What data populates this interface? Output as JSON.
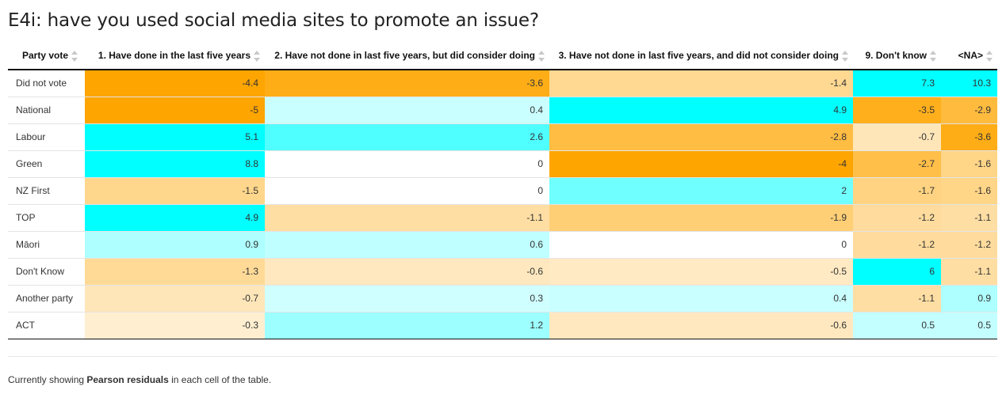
{
  "title": "E4i: have you used social media sites to promote an issue?",
  "table": {
    "columns": [
      "Party vote",
      "1. Have done in the last five years",
      "2. Have not done in last five years, but did consider doing",
      "3. Have not done in last five years, and did not consider doing",
      "9. Don't know",
      "<NA>"
    ],
    "rows": [
      {
        "label": "Did not vote",
        "values": [
          "-4.4",
          "-3.6",
          "-1.4",
          "7.3",
          "10.3"
        ]
      },
      {
        "label": "National",
        "values": [
          "-5",
          "0.4",
          "4.9",
          "-3.5",
          "-2.9"
        ]
      },
      {
        "label": "Labour",
        "values": [
          "5.1",
          "2.6",
          "-2.8",
          "-0.7",
          "-3.6"
        ]
      },
      {
        "label": "Green",
        "values": [
          "8.8",
          "0",
          "-4",
          "-2.7",
          "-1.6"
        ]
      },
      {
        "label": "NZ First",
        "values": [
          "-1.5",
          "0",
          "2",
          "-1.7",
          "-1.6"
        ]
      },
      {
        "label": "TOP",
        "values": [
          "4.9",
          "-1.1",
          "-1.9",
          "-1.2",
          "-1.1"
        ]
      },
      {
        "label": "Māori",
        "values": [
          "0.9",
          "0.6",
          "0",
          "-1.2",
          "-1.2"
        ]
      },
      {
        "label": "Don't Know",
        "values": [
          "-1.3",
          "-0.6",
          "-0.5",
          "6",
          "-1.1"
        ]
      },
      {
        "label": "Another party",
        "values": [
          "-0.7",
          "0.3",
          "0.4",
          "-1.1",
          "0.9"
        ]
      },
      {
        "label": "ACT",
        "values": [
          "-0.3",
          "1.2",
          "-0.6",
          "0.5",
          "0.5"
        ]
      }
    ],
    "colors": {
      "positive": "#00ffff",
      "negative": "#ffa500",
      "neutral": "#ffffff"
    }
  },
  "footer": {
    "prefix": "Currently showing ",
    "bold": "Pearson residuals",
    "suffix": " in each cell of the table."
  }
}
